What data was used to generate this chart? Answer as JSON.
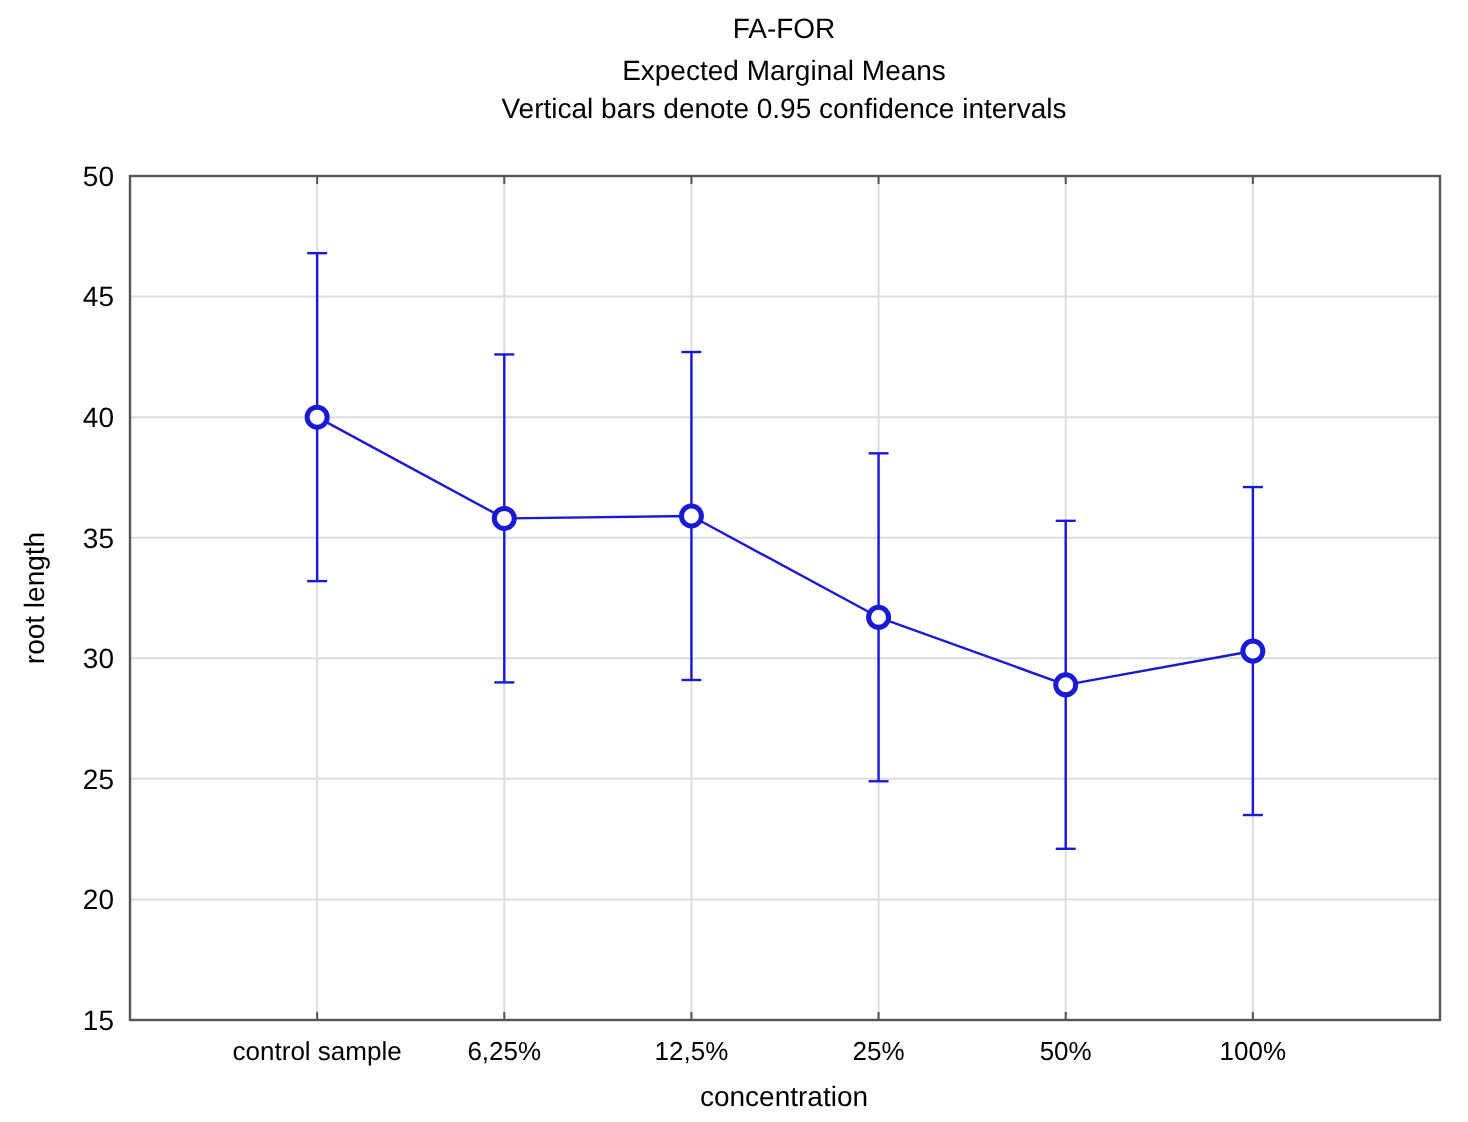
{
  "chart_data": {
    "type": "line",
    "title": "FA-FOR",
    "subtitle": "Expected Marginal Means\nVertical bars denote 0.95 confidence intervals",
    "xlabel": "concentration",
    "ylabel": "root length",
    "categories": [
      "control sample",
      "6,25%",
      "12,5%",
      "25%",
      "50%",
      "100%"
    ],
    "values": [
      40.0,
      35.8,
      35.9,
      31.7,
      28.9,
      30.3
    ],
    "errors": [
      6.8,
      6.8,
      6.8,
      6.8,
      6.8,
      6.8
    ],
    "color": "#1a1ad6",
    "marker": "circle",
    "line_style": "solid",
    "grid": true,
    "ylim": [
      15,
      50
    ],
    "yticks": [
      15,
      20,
      25,
      30,
      35,
      40,
      45,
      50
    ]
  }
}
